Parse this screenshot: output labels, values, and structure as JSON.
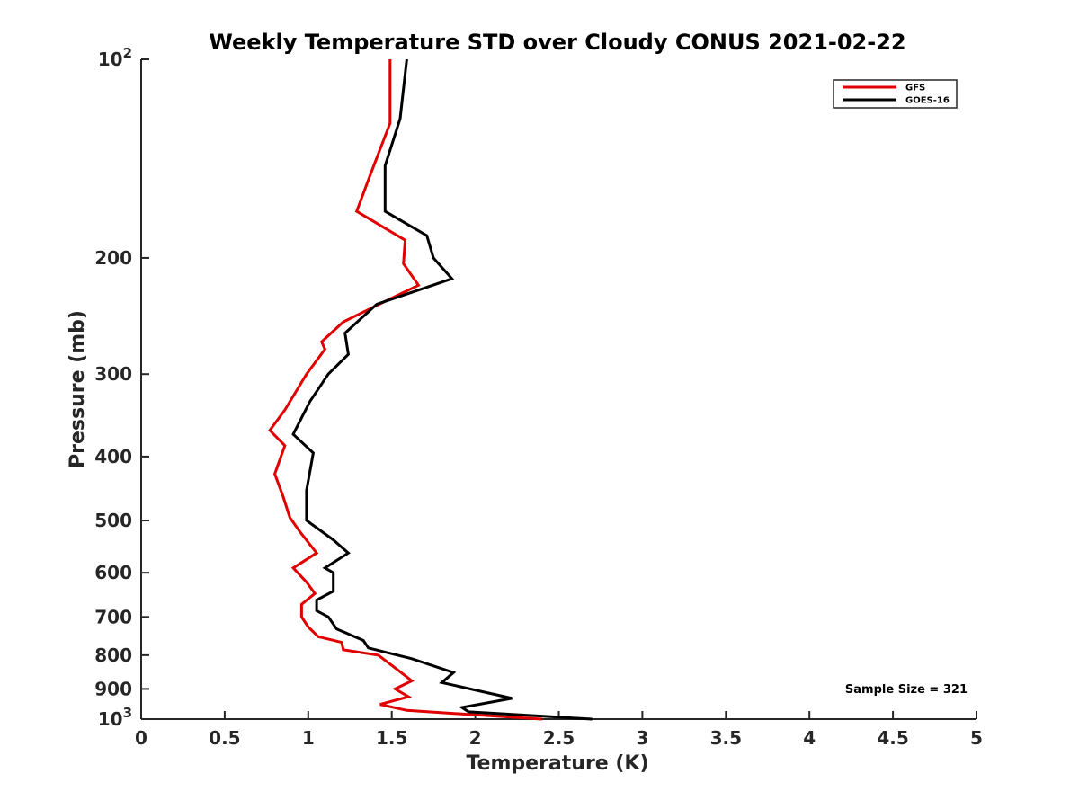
{
  "chart_data": {
    "type": "line",
    "title": "Weekly Temperature STD over Cloudy CONUS 2021-02-22",
    "xlabel": "Temperature (K)",
    "ylabel": "Pressure (mb)",
    "xlim": [
      0,
      5
    ],
    "ylim": [
      100,
      1000
    ],
    "y_scale": "log",
    "y_reversed": true,
    "x_ticks": [
      0,
      0.5,
      1,
      1.5,
      2,
      2.5,
      3,
      3.5,
      4,
      4.5,
      5
    ],
    "x_tick_labels": [
      "0",
      "0.5",
      "1",
      "1.5",
      "2",
      "2.5",
      "3",
      "3.5",
      "4",
      "4.5",
      "5"
    ],
    "y_ticks": [
      100,
      200,
      300,
      400,
      500,
      600,
      700,
      800,
      900,
      1000
    ],
    "y_tick_labels": [
      "10^2",
      "200",
      "300",
      "400",
      "500",
      "600",
      "700",
      "800",
      "900",
      "10^3"
    ],
    "grid": false,
    "legend_position": "top-right",
    "annotation": "Sample Size = 321",
    "series": [
      {
        "name": "GFS",
        "color": "#e00000",
        "points": [
          [
            1.49,
            100
          ],
          [
            1.49,
            125
          ],
          [
            1.37,
            150
          ],
          [
            1.29,
            170
          ],
          [
            1.58,
            188
          ],
          [
            1.57,
            204
          ],
          [
            1.66,
            220
          ],
          [
            1.47,
            232
          ],
          [
            1.21,
            250
          ],
          [
            1.08,
            268
          ],
          [
            1.1,
            275
          ],
          [
            0.99,
            300
          ],
          [
            0.86,
            340
          ],
          [
            0.77,
            365
          ],
          [
            0.86,
            385
          ],
          [
            0.8,
            425
          ],
          [
            0.85,
            460
          ],
          [
            0.89,
            495
          ],
          [
            0.95,
            520
          ],
          [
            1.05,
            560
          ],
          [
            0.91,
            590
          ],
          [
            0.99,
            620
          ],
          [
            1.04,
            645
          ],
          [
            0.96,
            670
          ],
          [
            0.96,
            700
          ],
          [
            1.0,
            725
          ],
          [
            1.06,
            750
          ],
          [
            1.2,
            765
          ],
          [
            1.21,
            785
          ],
          [
            1.42,
            800
          ],
          [
            1.53,
            840
          ],
          [
            1.62,
            875
          ],
          [
            1.52,
            900
          ],
          [
            1.6,
            925
          ],
          [
            1.43,
            950
          ],
          [
            1.59,
            970
          ],
          [
            2.4,
            1000
          ]
        ]
      },
      {
        "name": "GOES-16",
        "color": "#000000",
        "points": [
          [
            1.59,
            100
          ],
          [
            1.55,
            123
          ],
          [
            1.46,
            145
          ],
          [
            1.46,
            170
          ],
          [
            1.71,
            185
          ],
          [
            1.75,
            200
          ],
          [
            1.86,
            215
          ],
          [
            1.41,
            235
          ],
          [
            1.22,
            260
          ],
          [
            1.24,
            280
          ],
          [
            1.12,
            300
          ],
          [
            1.01,
            330
          ],
          [
            0.91,
            370
          ],
          [
            1.03,
            395
          ],
          [
            0.99,
            450
          ],
          [
            0.99,
            500
          ],
          [
            1.15,
            535
          ],
          [
            1.24,
            560
          ],
          [
            1.1,
            590
          ],
          [
            1.15,
            600
          ],
          [
            1.15,
            640
          ],
          [
            1.05,
            660
          ],
          [
            1.05,
            685
          ],
          [
            1.12,
            700
          ],
          [
            1.17,
            730
          ],
          [
            1.33,
            760
          ],
          [
            1.36,
            780
          ],
          [
            1.62,
            810
          ],
          [
            1.87,
            850
          ],
          [
            1.8,
            880
          ],
          [
            2.22,
            930
          ],
          [
            1.92,
            960
          ],
          [
            1.96,
            975
          ],
          [
            2.7,
            1000
          ]
        ]
      }
    ]
  }
}
